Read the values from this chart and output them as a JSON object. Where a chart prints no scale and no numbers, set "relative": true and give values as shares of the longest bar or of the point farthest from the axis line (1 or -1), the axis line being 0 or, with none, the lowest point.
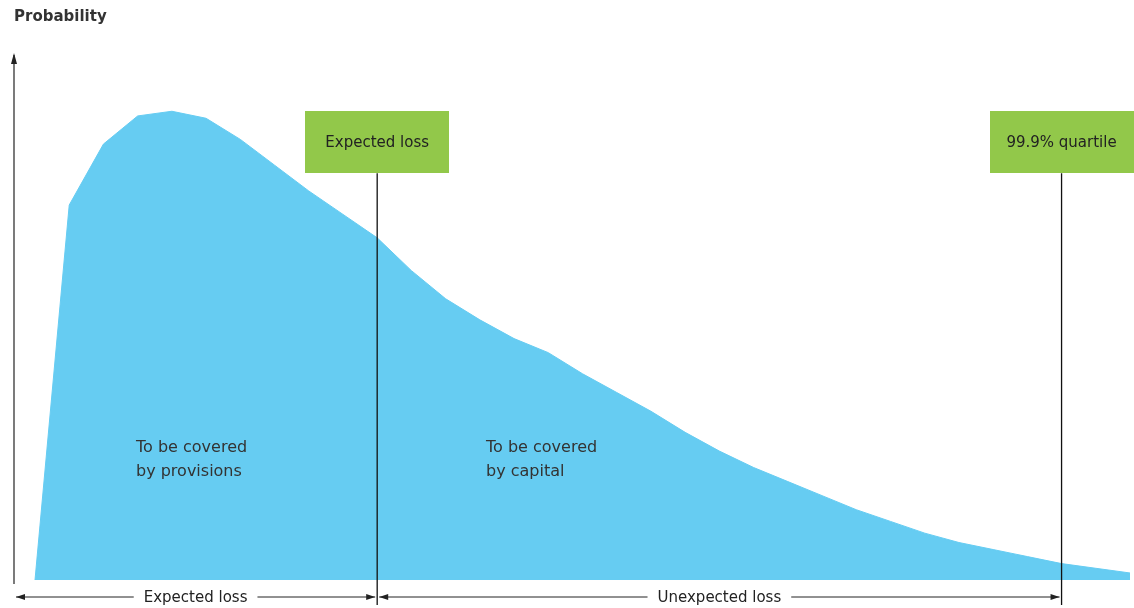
{
  "chart_data": {
    "type": "area",
    "relative": true,
    "color": "#66ccf2",
    "categories": [
      null,
      null,
      null,
      null,
      null,
      null,
      null,
      null,
      null,
      null,
      null,
      null,
      null,
      null,
      null,
      null,
      null,
      null,
      null,
      null,
      null,
      null,
      null,
      null,
      null,
      null,
      null,
      null,
      null,
      null,
      null,
      null,
      null
    ],
    "values": [
      0,
      0.8,
      0.93,
      0.99,
      1,
      0.985,
      0.94,
      0.885,
      0.83,
      0.78,
      0.73,
      0.66,
      0.6,
      0.555,
      0.515,
      0.485,
      0.44,
      0.4,
      0.36,
      0.315,
      0.275,
      0.24,
      0.21,
      0.18,
      0.15,
      0.125,
      0.1,
      0.08,
      0.065,
      0.05,
      0.035,
      0.025,
      0.015
    ],
    "annotations": [
      "Probability",
      "Expected loss",
      "99.9% quartile",
      "To be covered\nby provisions",
      "To be covered\nby capital",
      "Expected loss",
      "Unexpected loss"
    ]
  }
}
